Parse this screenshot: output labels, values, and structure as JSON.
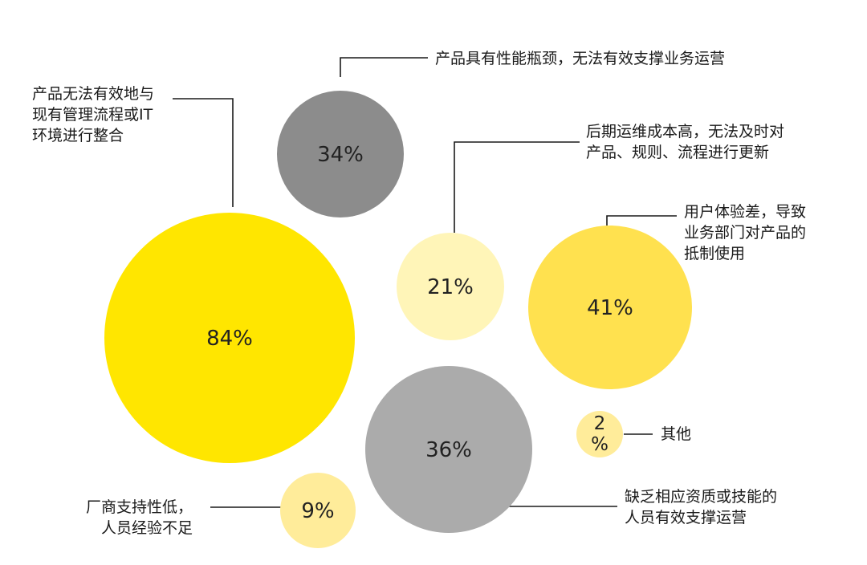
{
  "chart_data": {
    "type": "bubble",
    "title": "",
    "unit": "%",
    "series": [
      {
        "value": 84,
        "display": "84%",
        "label": [
          "产品无法有效地与",
          "现有管理流程或IT",
          "环境进行整合"
        ],
        "color": "#FFE600"
      },
      {
        "value": 34,
        "display": "34%",
        "label": [
          "产品具有性能瓶颈，无法有效支撑业务运营"
        ],
        "color": "#8C8C8C"
      },
      {
        "value": 21,
        "display": "21%",
        "label": [
          "后期运维成本高，无法及时对",
          "产品、规则、流程进行更新"
        ],
        "color": "#FFF5B8"
      },
      {
        "value": 41,
        "display": "41%",
        "label": [
          "用户体验差，导致",
          "业务部门对产品的",
          "抵制使用"
        ],
        "color": "#FFE14F"
      },
      {
        "value": 36,
        "display": "36%",
        "label": [
          "缺乏相应资质或技能的",
          "人员有效支撑运营"
        ],
        "color": "#ABABAB"
      },
      {
        "value": 9,
        "display": "9%",
        "label": [
          "厂商支持性低，",
          "人员经验不足"
        ],
        "color": "#FFEC9A"
      },
      {
        "value": 2,
        "display": [
          "2",
          "%"
        ],
        "label": [
          "其他"
        ],
        "color": "#FFEC9A"
      }
    ]
  }
}
